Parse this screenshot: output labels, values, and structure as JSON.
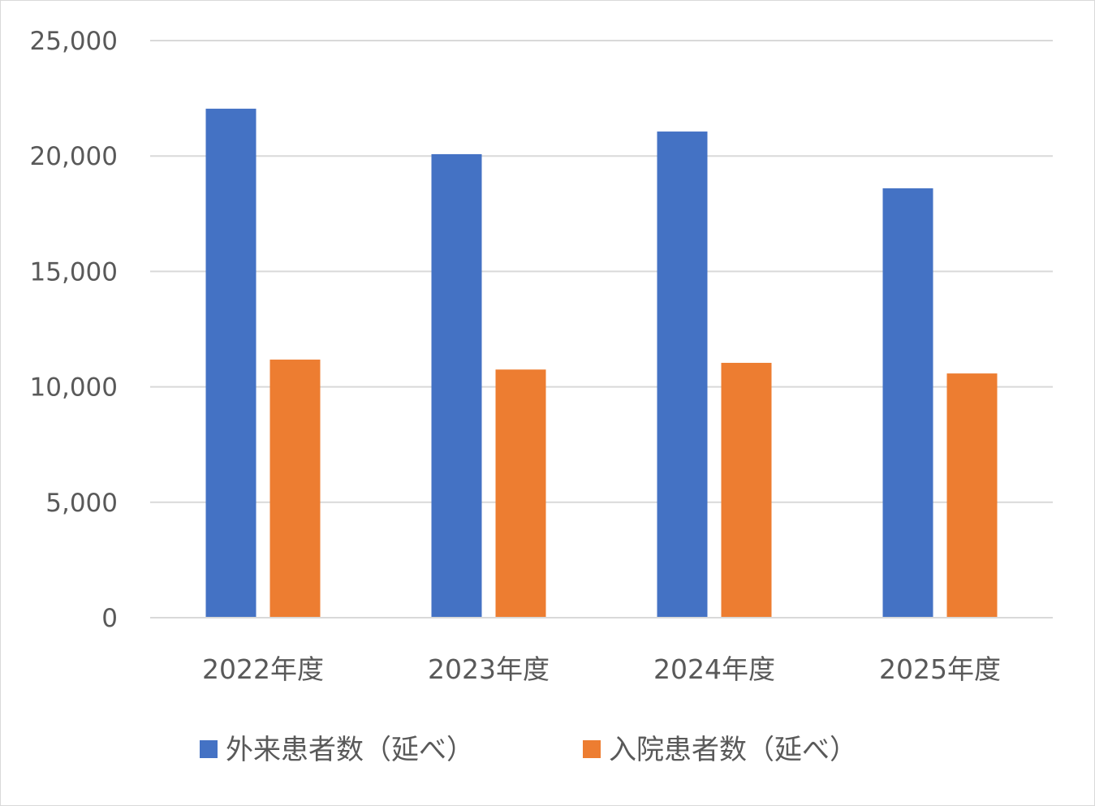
{
  "chart_data": {
    "type": "bar",
    "categories": [
      "2022年度",
      "2023年度",
      "2024年度",
      "2025年度"
    ],
    "series": [
      {
        "name": "外来患者数（延べ）",
        "color": "#4472C4",
        "values": [
          22050,
          20080,
          21060,
          18600
        ]
      },
      {
        "name": "入院患者数（延べ）",
        "color": "#ED7D31",
        "values": [
          11180,
          10750,
          11040,
          10580
        ]
      }
    ],
    "ylim": [
      0,
      25000
    ],
    "yticks": [
      0,
      5000,
      10000,
      15000,
      20000,
      25000
    ],
    "ytick_labels": [
      "0",
      "5,000",
      "10,000",
      "15,000",
      "20,000",
      "25,000"
    ],
    "grid": true,
    "legend_position": "bottom"
  }
}
